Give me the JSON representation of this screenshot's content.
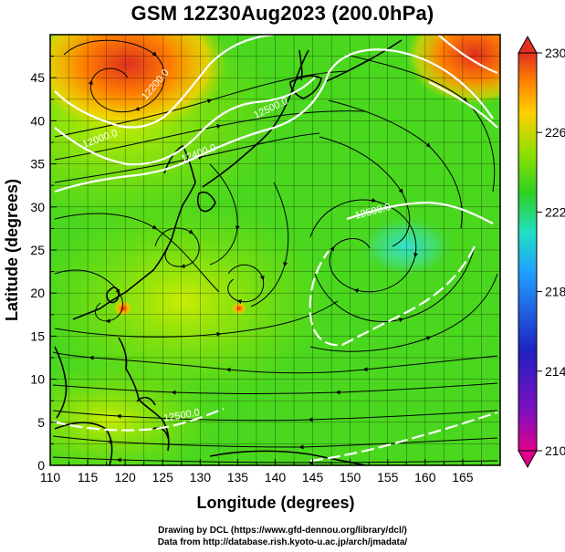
{
  "title": "GSM 12Z30Aug2023 (200.0hPa)",
  "x_axis": {
    "label": "Longitude (degrees)",
    "ticks": [
      "110",
      "115",
      "120",
      "125",
      "130",
      "135",
      "140",
      "145",
      "150",
      "155",
      "160",
      "165"
    ]
  },
  "y_axis": {
    "label": "Latitude  (degrees)",
    "ticks": [
      "0",
      "5",
      "10",
      "15",
      "20",
      "25",
      "30",
      "35",
      "40",
      "45"
    ]
  },
  "colorbar": {
    "ticks": [
      "230",
      "226",
      "222",
      "218",
      "214",
      "210"
    ],
    "colors": [
      "#e0005a",
      "#3020c0",
      "#20a0ff",
      "#20e0c0",
      "#30d020",
      "#90e000",
      "#ffd000",
      "#ff8000",
      "#e03020"
    ]
  },
  "contours": {
    "labels": [
      "12000.0",
      "12200.0",
      "12400.0",
      "12500.0",
      "12500.0",
      "12500.0"
    ]
  },
  "credits": {
    "line1": "Drawing by DCL (https://www.gfd-dennou.org/library/dcl/)",
    "line2": "Data from http://database.rish.kyoto-u.ac.jp/arch/jmadata/"
  }
}
